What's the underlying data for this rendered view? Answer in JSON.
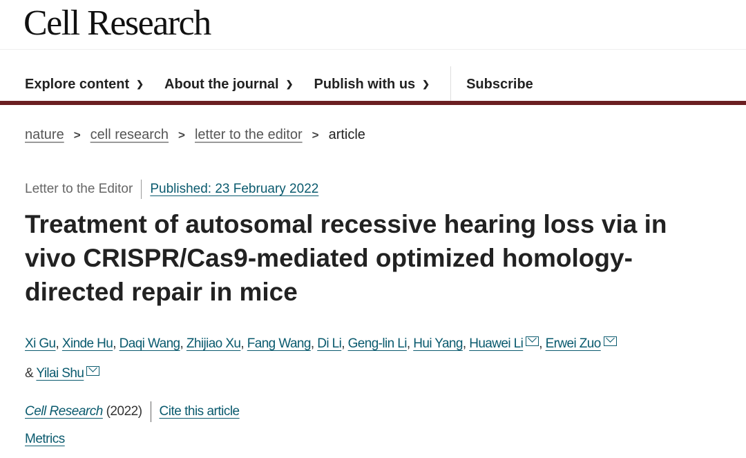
{
  "header": {
    "logo": "Cell Research"
  },
  "nav": {
    "items": [
      {
        "label": "Explore content"
      },
      {
        "label": "About the journal"
      },
      {
        "label": "Publish with us"
      }
    ],
    "subscribe": "Subscribe"
  },
  "breadcrumb": [
    "nature",
    "cell research",
    "letter to the editor",
    "article"
  ],
  "meta": {
    "type": "Letter to the Editor",
    "published": "Published: 23 February 2022"
  },
  "title": "Treatment of autosomal recessive hearing loss via in vivo CRISPR/Cas9-mediated optimized homology-directed repair in mice",
  "authors": [
    "Xi Gu",
    "Xinde Hu",
    "Daqi Wang",
    "Zhijiao Xu",
    "Fang Wang",
    "Di Li",
    "Geng-lin Li",
    "Hui Yang",
    "Huawei Li",
    "Erwei Zuo",
    "Yilai Shu"
  ],
  "authors_amp": "&",
  "citation": {
    "journal": "Cell Research",
    "year": "(2022)",
    "cite": "Cite this article"
  },
  "metrics": "Metrics",
  "colors": {
    "accent_bar": "#6b1f22",
    "link": "#0a5a6e"
  }
}
